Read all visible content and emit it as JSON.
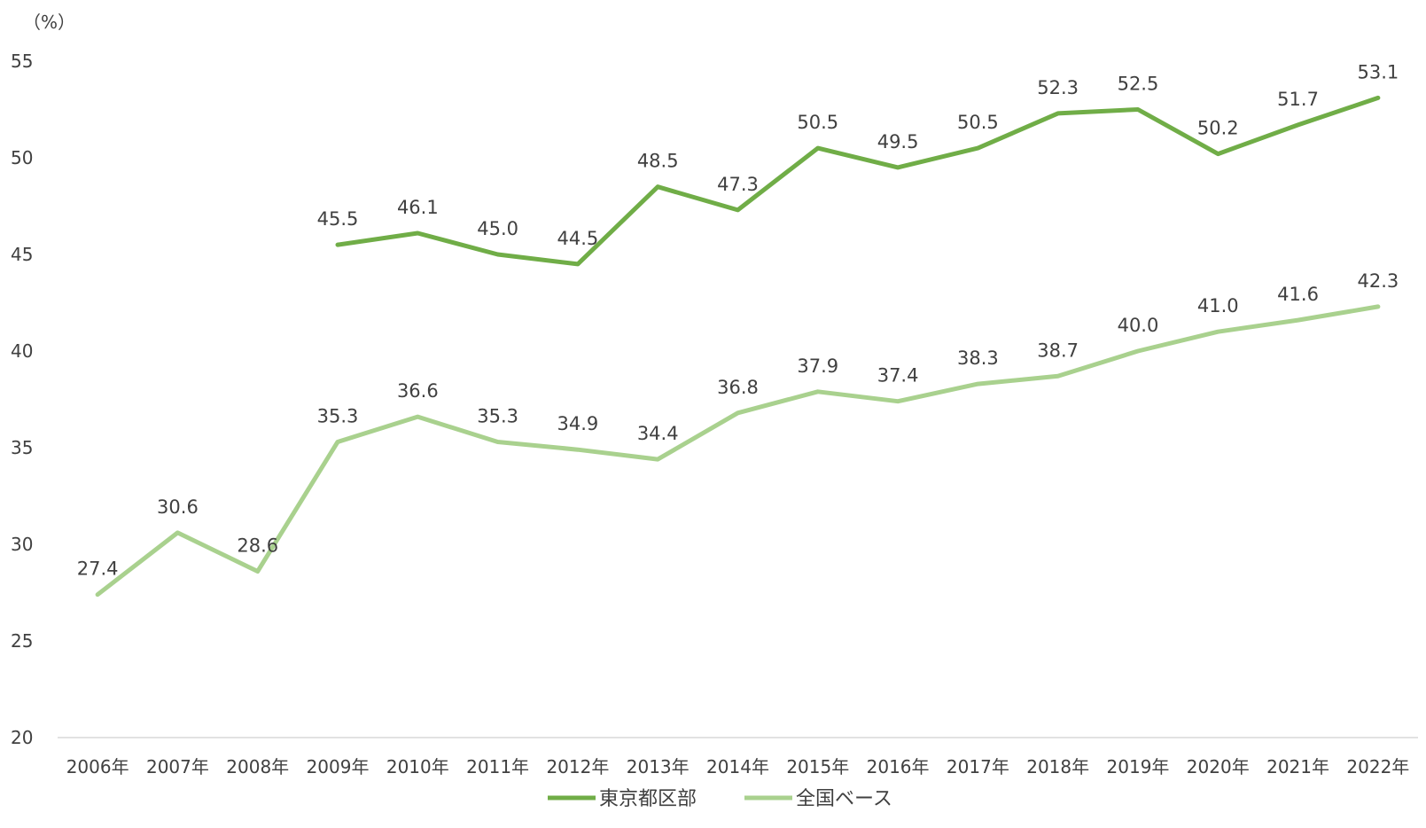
{
  "chart_data": {
    "type": "line",
    "y_unit_label": "（%）",
    "ylim": [
      20,
      55
    ],
    "yticks": [
      20,
      25,
      30,
      35,
      40,
      45,
      50,
      55
    ],
    "grid": false,
    "legend_position": "bottom",
    "categories": [
      "2006年",
      "2007年",
      "2008年",
      "2009年",
      "2010年",
      "2011年",
      "2012年",
      "2013年",
      "2014年",
      "2015年",
      "2016年",
      "2017年",
      "2018年",
      "2019年",
      "2020年",
      "2021年",
      "2022年"
    ],
    "series": [
      {
        "name": "東京都区部",
        "color": "#70ad47",
        "values": [
          null,
          null,
          null,
          45.5,
          46.1,
          45.0,
          44.5,
          48.5,
          47.3,
          50.5,
          49.5,
          50.5,
          52.3,
          52.5,
          50.2,
          51.7,
          53.1
        ],
        "labels": [
          "",
          "",
          "",
          "45.5",
          "46.1",
          "45.0",
          "44.5",
          "48.5",
          "47.3",
          "50.5",
          "49.5",
          "50.5",
          "52.3",
          "52.5",
          "50.2",
          "51.7",
          "53.1"
        ]
      },
      {
        "name": "全国ベース",
        "color": "#a9d18e",
        "values": [
          27.4,
          30.6,
          28.6,
          35.3,
          36.6,
          35.3,
          34.9,
          34.4,
          36.8,
          37.9,
          37.4,
          38.3,
          38.7,
          40.0,
          41.0,
          41.6,
          42.3
        ],
        "labels": [
          "27.4",
          "30.6",
          "28.6",
          "35.3",
          "36.6",
          "35.3",
          "34.9",
          "34.4",
          "36.8",
          "37.9",
          "37.4",
          "38.3",
          "38.7",
          "40.0",
          "41.0",
          "41.6",
          "42.3"
        ]
      }
    ]
  }
}
